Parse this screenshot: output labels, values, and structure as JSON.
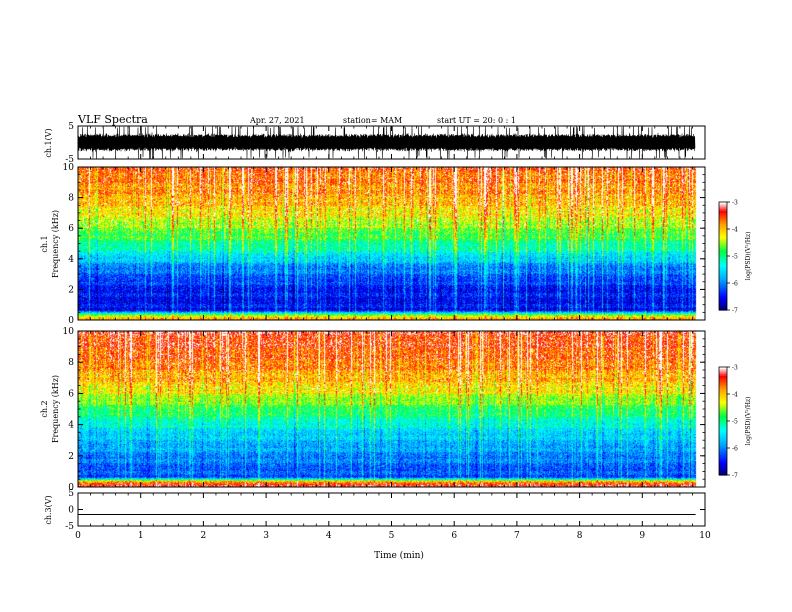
{
  "header": {
    "title": "VLF Spectra",
    "date": "Apr. 27, 2021",
    "station": "station= MAM",
    "start": "start  UT  =   20: 0  : 1"
  },
  "chart_data": [
    {
      "type": "line",
      "panel": "ch1-waveform",
      "ylabel": "ch.1(V)",
      "ylim": [
        -5,
        5
      ],
      "yticks": [
        "5",
        "-5"
      ],
      "xlim": [
        0,
        10
      ],
      "data_end_min": 9.85,
      "amplitude_v": 2.5,
      "color": "#000000"
    },
    {
      "type": "heatmap",
      "panel": "ch1-spectrogram",
      "ylabel": "ch.1 Frequency (kHz)",
      "ylabel_lines": [
        "ch.1",
        "Frequency (kHz)"
      ],
      "ylim": [
        0,
        10
      ],
      "yticks": [
        "0",
        "2",
        "4",
        "6",
        "8",
        "10"
      ],
      "xlim": [
        0,
        10
      ],
      "data_end_min": 9.85,
      "colorbar": {
        "label": "log(PSD)(V²/Hz)",
        "range": [
          -7,
          -3
        ],
        "ticks": [
          "-3",
          "-4",
          "-5",
          "-6",
          "-7"
        ]
      },
      "level_profile": [
        {
          "freq_khz": 0.0,
          "log_psd": -4.0
        },
        {
          "freq_khz": 0.3,
          "log_psd": -4.6
        },
        {
          "freq_khz": 0.6,
          "log_psd": -6.6
        },
        {
          "freq_khz": 2.0,
          "log_psd": -6.5
        },
        {
          "freq_khz": 3.5,
          "log_psd": -6.0
        },
        {
          "freq_khz": 4.5,
          "log_psd": -5.3
        },
        {
          "freq_khz": 5.5,
          "log_psd": -4.8
        },
        {
          "freq_khz": 6.5,
          "log_psd": -4.4
        },
        {
          "freq_khz": 8.0,
          "log_psd": -3.9
        },
        {
          "freq_khz": 10.0,
          "log_psd": -3.6
        }
      ]
    },
    {
      "type": "heatmap",
      "panel": "ch2-spectrogram",
      "ylabel": "ch.2 Frequency (kHz)",
      "ylabel_lines": [
        "ch.2",
        "Frequency (kHz)"
      ],
      "ylim": [
        0,
        10
      ],
      "yticks": [
        "0",
        "2",
        "4",
        "6",
        "8",
        "10"
      ],
      "xlim": [
        0,
        10
      ],
      "data_end_min": 9.85,
      "colorbar": {
        "label": "log(PSD)(V²/Hz)",
        "range": [
          -7,
          -3
        ],
        "ticks": [
          "-3",
          "-4",
          "-5",
          "-6",
          "-7"
        ]
      },
      "level_profile": [
        {
          "freq_khz": 0.0,
          "log_psd": -3.4
        },
        {
          "freq_khz": 0.3,
          "log_psd": -3.8
        },
        {
          "freq_khz": 0.6,
          "log_psd": -6.3
        },
        {
          "freq_khz": 2.0,
          "log_psd": -6.0
        },
        {
          "freq_khz": 3.5,
          "log_psd": -5.6
        },
        {
          "freq_khz": 4.5,
          "log_psd": -5.1
        },
        {
          "freq_khz": 5.5,
          "log_psd": -4.6
        },
        {
          "freq_khz": 6.5,
          "log_psd": -4.1
        },
        {
          "freq_khz": 8.0,
          "log_psd": -3.7
        },
        {
          "freq_khz": 10.0,
          "log_psd": -3.4
        }
      ]
    },
    {
      "type": "line",
      "panel": "ch3-waveform",
      "ylabel": "ch.3(V)",
      "ylim": [
        -5,
        5
      ],
      "yticks": [
        "5",
        "0",
        "-5"
      ],
      "xlim": [
        0,
        10
      ],
      "data_end_min": 9.85,
      "constant_v": -1.5,
      "color": "#000000"
    }
  ],
  "xaxis": {
    "label": "Time  (min)",
    "ticks": [
      "0",
      "1",
      "2",
      "3",
      "4",
      "5",
      "6",
      "7",
      "8",
      "9",
      "10"
    ]
  },
  "colors": {
    "background": "#ffffff",
    "axes": "#000000",
    "colormap": [
      "#000066",
      "#0000ff",
      "#00b0ff",
      "#00ffff",
      "#00ff40",
      "#ffff00",
      "#ffa000",
      "#ff0000",
      "#ffffff"
    ]
  }
}
